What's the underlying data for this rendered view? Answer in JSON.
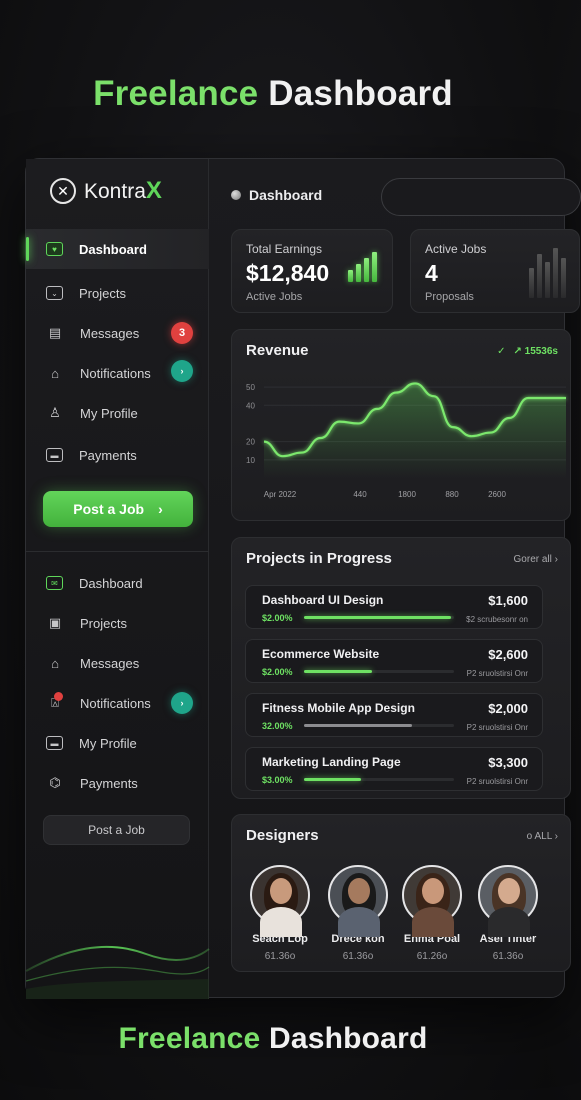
{
  "hero": {
    "accent": "Freelance",
    "rest": "Dashboard"
  },
  "colors": {
    "accent": "#5fd65a",
    "badge_red": "#e0413f",
    "badge_teal": "#1fa58a",
    "background": "#121214"
  },
  "logo": {
    "text": "Kontra",
    "x": "X"
  },
  "sidebar": {
    "primary": [
      {
        "label": "Dashboard",
        "icon": "dashboard-icon",
        "active": true
      },
      {
        "label": "Projects",
        "icon": "projects-icon"
      },
      {
        "label": "Messages",
        "icon": "messages-icon",
        "badge": "3"
      },
      {
        "label": "Notifications",
        "icon": "bell-icon",
        "badge": "›"
      },
      {
        "label": "My Profile",
        "icon": "user-icon"
      },
      {
        "label": "Payments",
        "icon": "card-icon"
      }
    ],
    "post_job": "Post a Job",
    "secondary": [
      {
        "label": "Dashboard",
        "icon": "mail-icon"
      },
      {
        "label": "Projects",
        "icon": "projects-icon"
      },
      {
        "label": "Messages",
        "icon": "home-icon"
      },
      {
        "label": "Notifications",
        "icon": "bell-icon",
        "badge": "›"
      },
      {
        "label": "My Profile",
        "icon": "profile-icon"
      },
      {
        "label": "Payments",
        "icon": "bank-icon"
      }
    ],
    "post_job_secondary": "Post a Job"
  },
  "topbar": {
    "title": "Dashboard"
  },
  "stats": [
    {
      "label": "Total Earnings",
      "value": "$12,840",
      "sub": "Active Jobs"
    },
    {
      "label": "Active Jobs",
      "value": "4",
      "sub": "Proposals"
    }
  ],
  "revenue": {
    "title": "Revenue",
    "stat": "↗ 15536s",
    "y_ticks": [
      "50",
      "40",
      "20",
      "10"
    ],
    "x_ticks": [
      "Apr 2022",
      "440",
      "1800",
      "880",
      "2600"
    ]
  },
  "chart_data": {
    "type": "area",
    "title": "Revenue",
    "xlabel": "",
    "ylabel": "",
    "x_tick_labels": [
      "Apr 2022",
      "440",
      "1800",
      "880",
      "2600"
    ],
    "y_tick_labels": [
      "10",
      "20",
      "40",
      "50"
    ],
    "x": [
      0,
      1,
      2,
      3,
      4,
      5,
      6,
      7,
      8,
      9,
      10,
      11,
      12,
      13,
      14,
      15,
      16
    ],
    "values": [
      20,
      12,
      14,
      22,
      31,
      30,
      38,
      47,
      52,
      45,
      28,
      23,
      25,
      33,
      44,
      44,
      44
    ],
    "ylim": [
      0,
      55
    ],
    "grid": true
  },
  "projects": {
    "title": "Projects in Progress",
    "link": "Gorer all",
    "items": [
      {
        "name": "Dashboard UI Design",
        "price": "$1,600",
        "pct": "$2.00%",
        "progress": 0.98,
        "meta": "$2 scrubesonr on",
        "grey": false
      },
      {
        "name": "Ecommerce Website",
        "price": "$2,600",
        "pct": "$2.00%",
        "progress": 0.45,
        "meta": "P2 sruolstirsi Onr",
        "grey": false
      },
      {
        "name": "Fitness Mobile App Design",
        "price": "$2,000",
        "pct": "32.00%",
        "progress": 0.72,
        "meta": "P2 sruolstirsi Onr",
        "grey": true
      },
      {
        "name": "Marketing Landing Page",
        "price": "$3,300",
        "pct": "$3.00%",
        "progress": 0.38,
        "meta": "P2 sruolstirsi Onr",
        "grey": false
      }
    ]
  },
  "designers": {
    "title": "Designers",
    "link": "o ALL",
    "people": [
      {
        "name": "Seach Lop",
        "rate": "61.36o"
      },
      {
        "name": "Drece kon",
        "rate": "61.36o"
      },
      {
        "name": "Enma Poal",
        "rate": "61.26o"
      },
      {
        "name": "Asel Tinter",
        "rate": "61.36o"
      }
    ]
  }
}
